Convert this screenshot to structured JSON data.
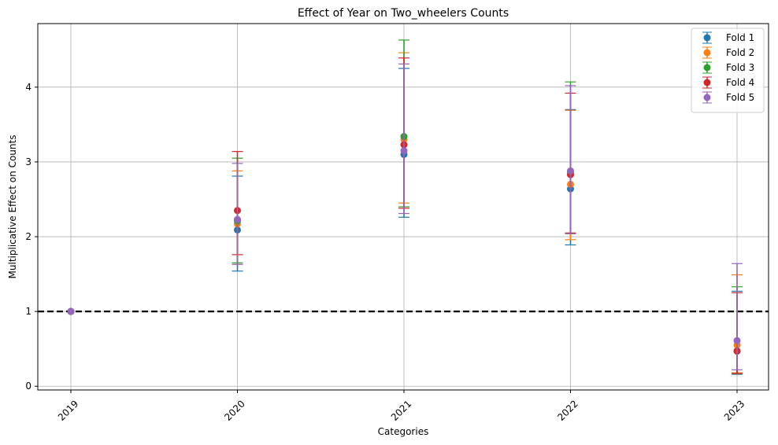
{
  "chart_data": {
    "type": "scatter",
    "title": "Effect of Year on Two_wheelers Counts",
    "xlabel": "Categories",
    "ylabel": "Multiplicative Effect on Counts",
    "categories": [
      "2019",
      "2020",
      "2021",
      "2022",
      "2023"
    ],
    "ylim": [
      -0.05,
      4.85
    ],
    "yticks": [
      0,
      1,
      2,
      3,
      4
    ],
    "grid": true,
    "legend_position": "top-right",
    "reference_line": {
      "y": 1.0,
      "style": "dashed",
      "color": "#000000"
    },
    "series": [
      {
        "name": "Fold 1",
        "color": "#1f77b4",
        "values": [
          1.0,
          2.09,
          3.1,
          2.64,
          0.47
        ],
        "lower": [
          1.0,
          1.54,
          2.26,
          1.89,
          0.16
        ],
        "upper": [
          1.0,
          2.81,
          4.25,
          3.7,
          1.27
        ]
      },
      {
        "name": "Fold 2",
        "color": "#ff7f0e",
        "values": [
          1.0,
          2.17,
          3.3,
          2.7,
          0.55
        ],
        "lower": [
          1.0,
          1.63,
          2.45,
          1.96,
          0.18
        ],
        "upper": [
          1.0,
          2.88,
          4.46,
          3.69,
          1.49
        ]
      },
      {
        "name": "Fold 3",
        "color": "#2ca02c",
        "values": [
          1.0,
          2.21,
          3.34,
          2.86,
          0.47
        ],
        "lower": [
          1.0,
          1.65,
          2.4,
          2.04,
          0.17
        ],
        "upper": [
          1.0,
          3.05,
          4.63,
          4.07,
          1.33
        ]
      },
      {
        "name": "Fold 4",
        "color": "#d62728",
        "values": [
          1.0,
          2.35,
          3.23,
          2.83,
          0.47
        ],
        "lower": [
          1.0,
          1.76,
          2.38,
          2.05,
          0.17
        ],
        "upper": [
          1.0,
          3.14,
          4.39,
          3.92,
          1.25
        ]
      },
      {
        "name": "Fold 5",
        "color": "#9467bd",
        "values": [
          1.0,
          2.23,
          3.15,
          2.88,
          0.61
        ],
        "lower": [
          1.0,
          1.63,
          2.31,
          2.04,
          0.22
        ],
        "upper": [
          1.0,
          2.98,
          4.31,
          4.02,
          1.64
        ]
      }
    ]
  }
}
